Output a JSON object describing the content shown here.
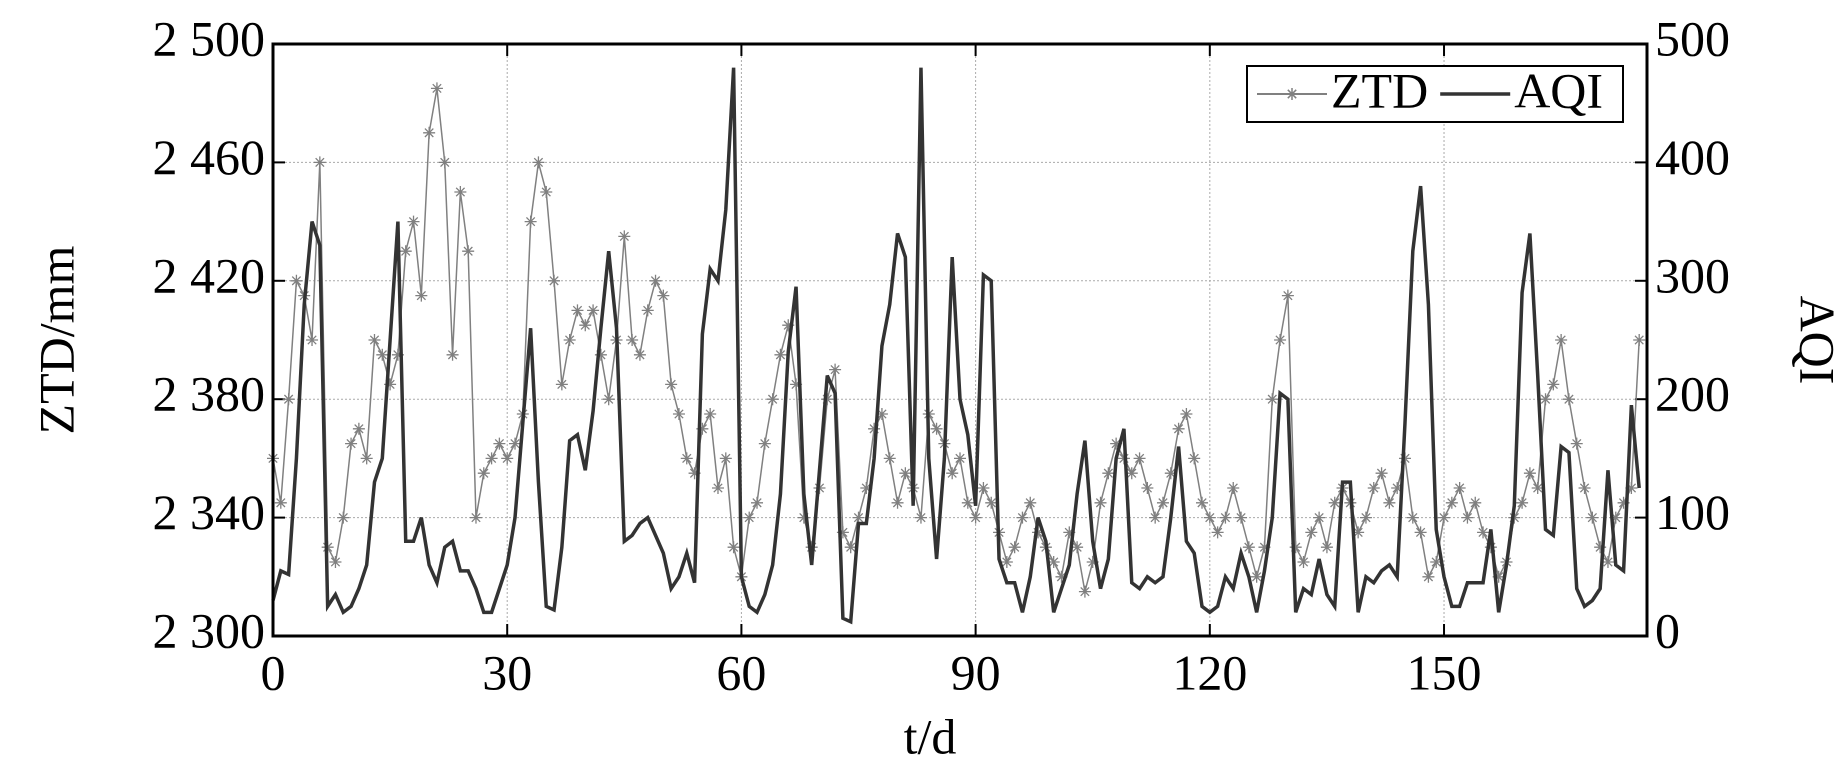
{
  "chart_data": {
    "type": "line",
    "xlabel": "t/d",
    "ylabel": "ZTD/mm",
    "y2label": "AQI",
    "xlim": [
      0,
      176
    ],
    "xticks": [
      0,
      30,
      60,
      90,
      120,
      150
    ],
    "ylim": [
      2300,
      2500
    ],
    "yticks": [
      {
        "value": 2300,
        "label": "2 300"
      },
      {
        "value": 2340,
        "label": "2 340"
      },
      {
        "value": 2380,
        "label": "2 380"
      },
      {
        "value": 2420,
        "label": "2 420"
      },
      {
        "value": 2460,
        "label": "2 460"
      },
      {
        "value": 2500,
        "label": "2 500"
      }
    ],
    "y2lim": [
      0,
      500
    ],
    "y2ticks": [
      0,
      100,
      200,
      300,
      400,
      500
    ],
    "grid": true,
    "legend": "upper right",
    "x": [
      0,
      1,
      2,
      3,
      4,
      5,
      6,
      7,
      8,
      9,
      10,
      11,
      12,
      13,
      14,
      15,
      16,
      17,
      18,
      19,
      20,
      21,
      22,
      23,
      24,
      25,
      26,
      27,
      28,
      29,
      30,
      31,
      32,
      33,
      34,
      35,
      36,
      37,
      38,
      39,
      40,
      41,
      42,
      43,
      44,
      45,
      46,
      47,
      48,
      49,
      50,
      51,
      52,
      53,
      54,
      55,
      56,
      57,
      58,
      59,
      60,
      61,
      62,
      63,
      64,
      65,
      66,
      67,
      68,
      69,
      70,
      71,
      72,
      73,
      74,
      75,
      76,
      77,
      78,
      79,
      80,
      81,
      82,
      83,
      84,
      85,
      86,
      87,
      88,
      89,
      90,
      91,
      92,
      93,
      94,
      95,
      96,
      97,
      98,
      99,
      100,
      101,
      102,
      103,
      104,
      105,
      106,
      107,
      108,
      109,
      110,
      111,
      112,
      113,
      114,
      115,
      116,
      117,
      118,
      119,
      120,
      121,
      122,
      123,
      124,
      125,
      126,
      127,
      128,
      129,
      130,
      131,
      132,
      133,
      134,
      135,
      136,
      137,
      138,
      139,
      140,
      141,
      142,
      143,
      144,
      145,
      146,
      147,
      148,
      149,
      150,
      151,
      152,
      153,
      154,
      155,
      156,
      157,
      158,
      159,
      160,
      161,
      162,
      163,
      164,
      165,
      166,
      167,
      168,
      169,
      170,
      171,
      172,
      173,
      174,
      175
    ],
    "series": [
      {
        "name": "ZTD",
        "color": "#808080",
        "axis": "y",
        "marker": "star",
        "values": [
          2360,
          2345,
          2380,
          2420,
          2415,
          2400,
          2460,
          2330,
          2325,
          2340,
          2365,
          2370,
          2360,
          2400,
          2395,
          2385,
          2395,
          2430,
          2440,
          2415,
          2470,
          2485,
          2460,
          2395,
          2450,
          2430,
          2340,
          2355,
          2360,
          2365,
          2360,
          2365,
          2375,
          2440,
          2460,
          2450,
          2420,
          2385,
          2400,
          2410,
          2405,
          2410,
          2395,
          2380,
          2400,
          2435,
          2400,
          2395,
          2410,
          2420,
          2415,
          2385,
          2375,
          2360,
          2355,
          2370,
          2375,
          2350,
          2360,
          2330,
          2320,
          2340,
          2345,
          2365,
          2380,
          2395,
          2405,
          2385,
          2340,
          2330,
          2350,
          2380,
          2390,
          2335,
          2330,
          2340,
          2350,
          2370,
          2375,
          2360,
          2345,
          2355,
          2350,
          2340,
          2375,
          2370,
          2365,
          2355,
          2360,
          2345,
          2340,
          2350,
          2345,
          2335,
          2325,
          2330,
          2340,
          2345,
          2335,
          2330,
          2325,
          2320,
          2335,
          2330,
          2315,
          2325,
          2345,
          2355,
          2365,
          2360,
          2355,
          2360,
          2350,
          2340,
          2345,
          2355,
          2370,
          2375,
          2360,
          2345,
          2340,
          2335,
          2340,
          2350,
          2340,
          2330,
          2320,
          2330,
          2380,
          2400,
          2415,
          2330,
          2325,
          2335,
          2340,
          2330,
          2345,
          2350,
          2345,
          2335,
          2340,
          2350,
          2355,
          2345,
          2350,
          2360,
          2340,
          2335,
          2320,
          2325,
          2340,
          2345,
          2350,
          2340,
          2345,
          2335,
          2330,
          2320,
          2325,
          2340,
          2345,
          2355,
          2350,
          2380,
          2385,
          2400,
          2380,
          2365,
          2350,
          2340,
          2330,
          2325,
          2340,
          2345,
          2350,
          2400
        ]
      },
      {
        "name": "AQI",
        "color": "#333333",
        "axis": "y2",
        "values": [
          30,
          55,
          52,
          150,
          280,
          350,
          330,
          25,
          35,
          20,
          25,
          40,
          60,
          130,
          150,
          250,
          350,
          80,
          80,
          100,
          60,
          45,
          75,
          80,
          55,
          55,
          40,
          20,
          20,
          40,
          60,
          100,
          180,
          260,
          130,
          25,
          22,
          75,
          165,
          170,
          140,
          190,
          260,
          325,
          260,
          80,
          85,
          95,
          100,
          85,
          70,
          40,
          50,
          70,
          45,
          255,
          310,
          300,
          360,
          480,
          50,
          25,
          20,
          35,
          60,
          120,
          240,
          295,
          120,
          60,
          140,
          220,
          205,
          15,
          12,
          95,
          95,
          150,
          245,
          280,
          340,
          320,
          110,
          480,
          150,
          65,
          150,
          320,
          200,
          170,
          110,
          305,
          300,
          65,
          45,
          45,
          20,
          50,
          100,
          80,
          20,
          40,
          60,
          120,
          165,
          80,
          40,
          65,
          150,
          175,
          45,
          40,
          50,
          45,
          50,
          100,
          160,
          80,
          70,
          25,
          20,
          25,
          50,
          40,
          70,
          50,
          20,
          55,
          100,
          205,
          200,
          20,
          40,
          35,
          65,
          35,
          25,
          130,
          130,
          20,
          50,
          45,
          55,
          60,
          50,
          180,
          325,
          380,
          280,
          90,
          50,
          25,
          25,
          45,
          45,
          45,
          90,
          20,
          60,
          110,
          290,
          340,
          220,
          90,
          85,
          160,
          155,
          40,
          25,
          30,
          40,
          140,
          60,
          55,
          195,
          125
        ]
      }
    ]
  }
}
